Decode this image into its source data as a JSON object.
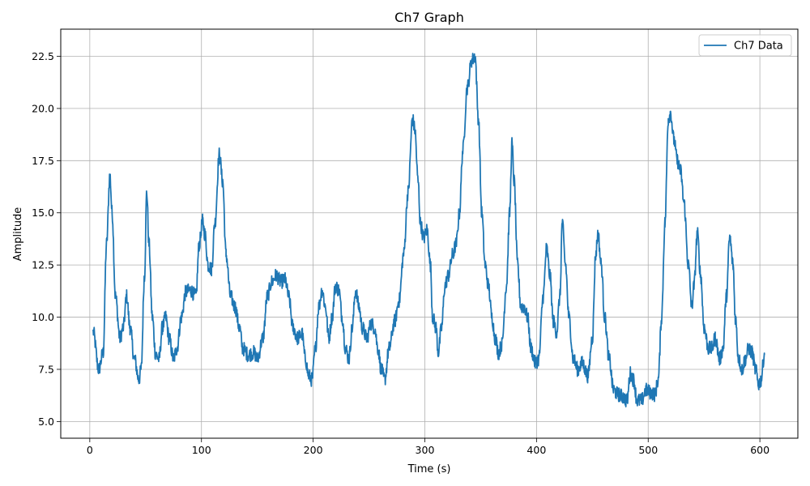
{
  "chart_data": {
    "type": "line",
    "title": "Ch7 Graph",
    "xlabel": "Time (s)",
    "ylabel": "Amplitude",
    "xlim": [
      -26,
      634
    ],
    "ylim": [
      4.2,
      23.8
    ],
    "xticks": [
      0,
      100,
      200,
      300,
      400,
      500,
      600
    ],
    "yticks": [
      5.0,
      7.5,
      10.0,
      12.5,
      15.0,
      17.5,
      20.0,
      22.5
    ],
    "grid": true,
    "legend_position": "top-right",
    "series": [
      {
        "name": "Ch7 Data",
        "color": "#1f77b4",
        "noise": 0.35,
        "anchors": [
          [
            3,
            9.3
          ],
          [
            8,
            7.5
          ],
          [
            12,
            8.3
          ],
          [
            15,
            13.5
          ],
          [
            18,
            16.8
          ],
          [
            20,
            15.0
          ],
          [
            23,
            11.0
          ],
          [
            27,
            9.0
          ],
          [
            30,
            9.5
          ],
          [
            33,
            11.0
          ],
          [
            36,
            9.5
          ],
          [
            40,
            8.0
          ],
          [
            44,
            7.0
          ],
          [
            46,
            7.5
          ],
          [
            49,
            12.0
          ],
          [
            51,
            16.0
          ],
          [
            53,
            13.5
          ],
          [
            56,
            10.0
          ],
          [
            59,
            8.2
          ],
          [
            62,
            8.0
          ],
          [
            65,
            9.5
          ],
          [
            68,
            10.0
          ],
          [
            71,
            9.0
          ],
          [
            75,
            8.0
          ],
          [
            78,
            8.5
          ],
          [
            82,
            10.0
          ],
          [
            86,
            11.2
          ],
          [
            90,
            11.3
          ],
          [
            95,
            11.0
          ],
          [
            98,
            13.5
          ],
          [
            101,
            14.6
          ],
          [
            103,
            14.0
          ],
          [
            106,
            12.5
          ],
          [
            109,
            12.3
          ],
          [
            112,
            14.5
          ],
          [
            116,
            17.8
          ],
          [
            119,
            16.5
          ],
          [
            122,
            13.0
          ],
          [
            126,
            11.0
          ],
          [
            130,
            10.5
          ],
          [
            134,
            9.5
          ],
          [
            137,
            8.5
          ],
          [
            142,
            8.2
          ],
          [
            147,
            8.3
          ],
          [
            150,
            8.0
          ],
          [
            155,
            9.0
          ],
          [
            159,
            11.0
          ],
          [
            163,
            11.7
          ],
          [
            167,
            12.0
          ],
          [
            171,
            11.7
          ],
          [
            175,
            11.8
          ],
          [
            178,
            11.0
          ],
          [
            182,
            9.5
          ],
          [
            186,
            9.0
          ],
          [
            190,
            9.2
          ],
          [
            193,
            8.0
          ],
          [
            196,
            7.2
          ],
          [
            199,
            7.0
          ],
          [
            202,
            8.5
          ],
          [
            205,
            10.5
          ],
          [
            208,
            11.3
          ],
          [
            211,
            10.5
          ],
          [
            214,
            9.0
          ],
          [
            217,
            10.0
          ],
          [
            220,
            11.5
          ],
          [
            223,
            11.3
          ],
          [
            226,
            10.0
          ],
          [
            229,
            8.5
          ],
          [
            232,
            8.0
          ],
          [
            235,
            9.5
          ],
          [
            238,
            11.3
          ],
          [
            241,
            10.5
          ],
          [
            244,
            9.5
          ],
          [
            248,
            9.0
          ],
          [
            252,
            9.7
          ],
          [
            255,
            9.5
          ],
          [
            258,
            8.5
          ],
          [
            261,
            7.5
          ],
          [
            264,
            7.0
          ],
          [
            268,
            8.5
          ],
          [
            273,
            9.8
          ],
          [
            277,
            10.8
          ],
          [
            281,
            13.0
          ],
          [
            285,
            16.0
          ],
          [
            289,
            19.5
          ],
          [
            291,
            19.0
          ],
          [
            294,
            16.5
          ],
          [
            296,
            14.5
          ],
          [
            299,
            13.8
          ],
          [
            302,
            14.2
          ],
          [
            305,
            12.5
          ],
          [
            307,
            10.0
          ],
          [
            310,
            9.5
          ],
          [
            312,
            8.3
          ],
          [
            315,
            9.5
          ],
          [
            318,
            11.5
          ],
          [
            321,
            12.0
          ],
          [
            325,
            13.0
          ],
          [
            328,
            13.5
          ],
          [
            331,
            15.0
          ],
          [
            334,
            18.0
          ],
          [
            338,
            21.0
          ],
          [
            342,
            22.3
          ],
          [
            345,
            22.5
          ],
          [
            348,
            19.5
          ],
          [
            351,
            15.0
          ],
          [
            354,
            12.5
          ],
          [
            357,
            11.5
          ],
          [
            360,
            10.0
          ],
          [
            363,
            9.0
          ],
          [
            366,
            8.3
          ],
          [
            369,
            8.7
          ],
          [
            373,
            11.5
          ],
          [
            376,
            15.0
          ],
          [
            378,
            18.3
          ],
          [
            380,
            16.5
          ],
          [
            383,
            12.5
          ],
          [
            386,
            10.5
          ],
          [
            389,
            10.5
          ],
          [
            392,
            10.0
          ],
          [
            395,
            8.5
          ],
          [
            399,
            7.8
          ],
          [
            402,
            8.0
          ],
          [
            406,
            11.0
          ],
          [
            409,
            13.3
          ],
          [
            412,
            12.0
          ],
          [
            415,
            9.8
          ],
          [
            418,
            9.3
          ],
          [
            421,
            11.0
          ],
          [
            423,
            14.5
          ],
          [
            426,
            12.5
          ],
          [
            429,
            10.0
          ],
          [
            433,
            8.0
          ],
          [
            437,
            7.5
          ],
          [
            441,
            7.8
          ],
          [
            446,
            7.2
          ],
          [
            450,
            9.0
          ],
          [
            453,
            13.0
          ],
          [
            455,
            14.0
          ],
          [
            458,
            12.5
          ],
          [
            461,
            10.0
          ],
          [
            465,
            8.0
          ],
          [
            469,
            6.5
          ],
          [
            473,
            6.3
          ],
          [
            477,
            6.2
          ],
          [
            481,
            6.0
          ],
          [
            484,
            7.3
          ],
          [
            487,
            7.0
          ],
          [
            490,
            6.0
          ],
          [
            494,
            6.0
          ],
          [
            498,
            6.5
          ],
          [
            502,
            6.4
          ],
          [
            506,
            6.3
          ],
          [
            509,
            7.0
          ],
          [
            512,
            10.0
          ],
          [
            515,
            14.5
          ],
          [
            518,
            19.5
          ],
          [
            520,
            19.8
          ],
          [
            523,
            18.5
          ],
          [
            526,
            17.5
          ],
          [
            529,
            17.0
          ],
          [
            532,
            15.5
          ],
          [
            536,
            12.5
          ],
          [
            539,
            10.5
          ],
          [
            541,
            11.5
          ],
          [
            544,
            14.0
          ],
          [
            547,
            12.0
          ],
          [
            550,
            9.5
          ],
          [
            554,
            8.5
          ],
          [
            557,
            8.5
          ],
          [
            560,
            9.0
          ],
          [
            564,
            8.0
          ],
          [
            567,
            8.5
          ],
          [
            570,
            11.0
          ],
          [
            573,
            13.8
          ],
          [
            576,
            12.5
          ],
          [
            578,
            10.0
          ],
          [
            581,
            8.0
          ],
          [
            584,
            7.5
          ],
          [
            587,
            8.0
          ],
          [
            590,
            8.5
          ],
          [
            593,
            8.3
          ],
          [
            596,
            7.5
          ],
          [
            599,
            6.8
          ],
          [
            601,
            7.0
          ],
          [
            604,
            8.2
          ]
        ]
      }
    ]
  }
}
